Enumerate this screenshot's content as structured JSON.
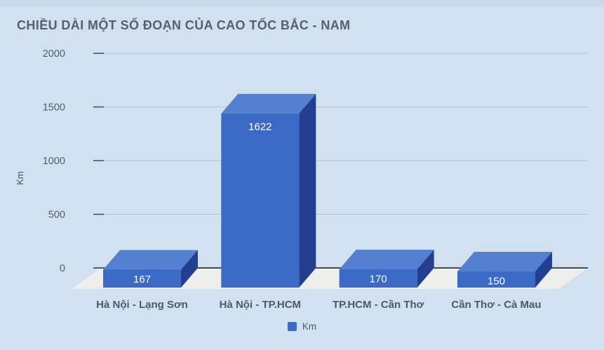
{
  "title": "CHIỀU DÀI MỘT SỐ ĐOẠN CỦA CAO TỐC BẮC - NAM",
  "y_axis": {
    "title": "Km",
    "ticks": [
      0,
      500,
      1000,
      1500,
      2000
    ]
  },
  "legend": {
    "label": "Km"
  },
  "chart_data": {
    "type": "bar",
    "style": "3d-column",
    "title": "CHIỀU DÀI MỘT SỐ ĐOẠN CỦA CAO TỐC BẮC - NAM",
    "categories": [
      "Hà Nội - Lạng Sơn",
      "Hà Nội - TP.HCM",
      "TP.HCM - Cần Thơ",
      "Cần Thơ - Cà Mau"
    ],
    "series": [
      {
        "name": "Km",
        "values": [
          167,
          1622,
          170,
          150
        ]
      }
    ],
    "data_labels_shown": true,
    "xlabel": "",
    "ylabel": "Km",
    "ylim": [
      0,
      2000
    ],
    "grid": true,
    "legend_position": "bottom"
  },
  "colors": {
    "background": "#d2e1f0",
    "top_strip": "#cadaea",
    "bar_front": "#3a6ac6",
    "bar_top": "#5480d2",
    "bar_side": "#243e8f",
    "floor": "#eeeeec",
    "gridline": "#b3c1ce",
    "tick": "#4a545c",
    "zero_line": "#14181c",
    "tick_label": "#51606c",
    "category_label": "#4b5a66",
    "value_label": "#ffffff",
    "title_text": "#57606a",
    "axis_title": "#454e57"
  }
}
